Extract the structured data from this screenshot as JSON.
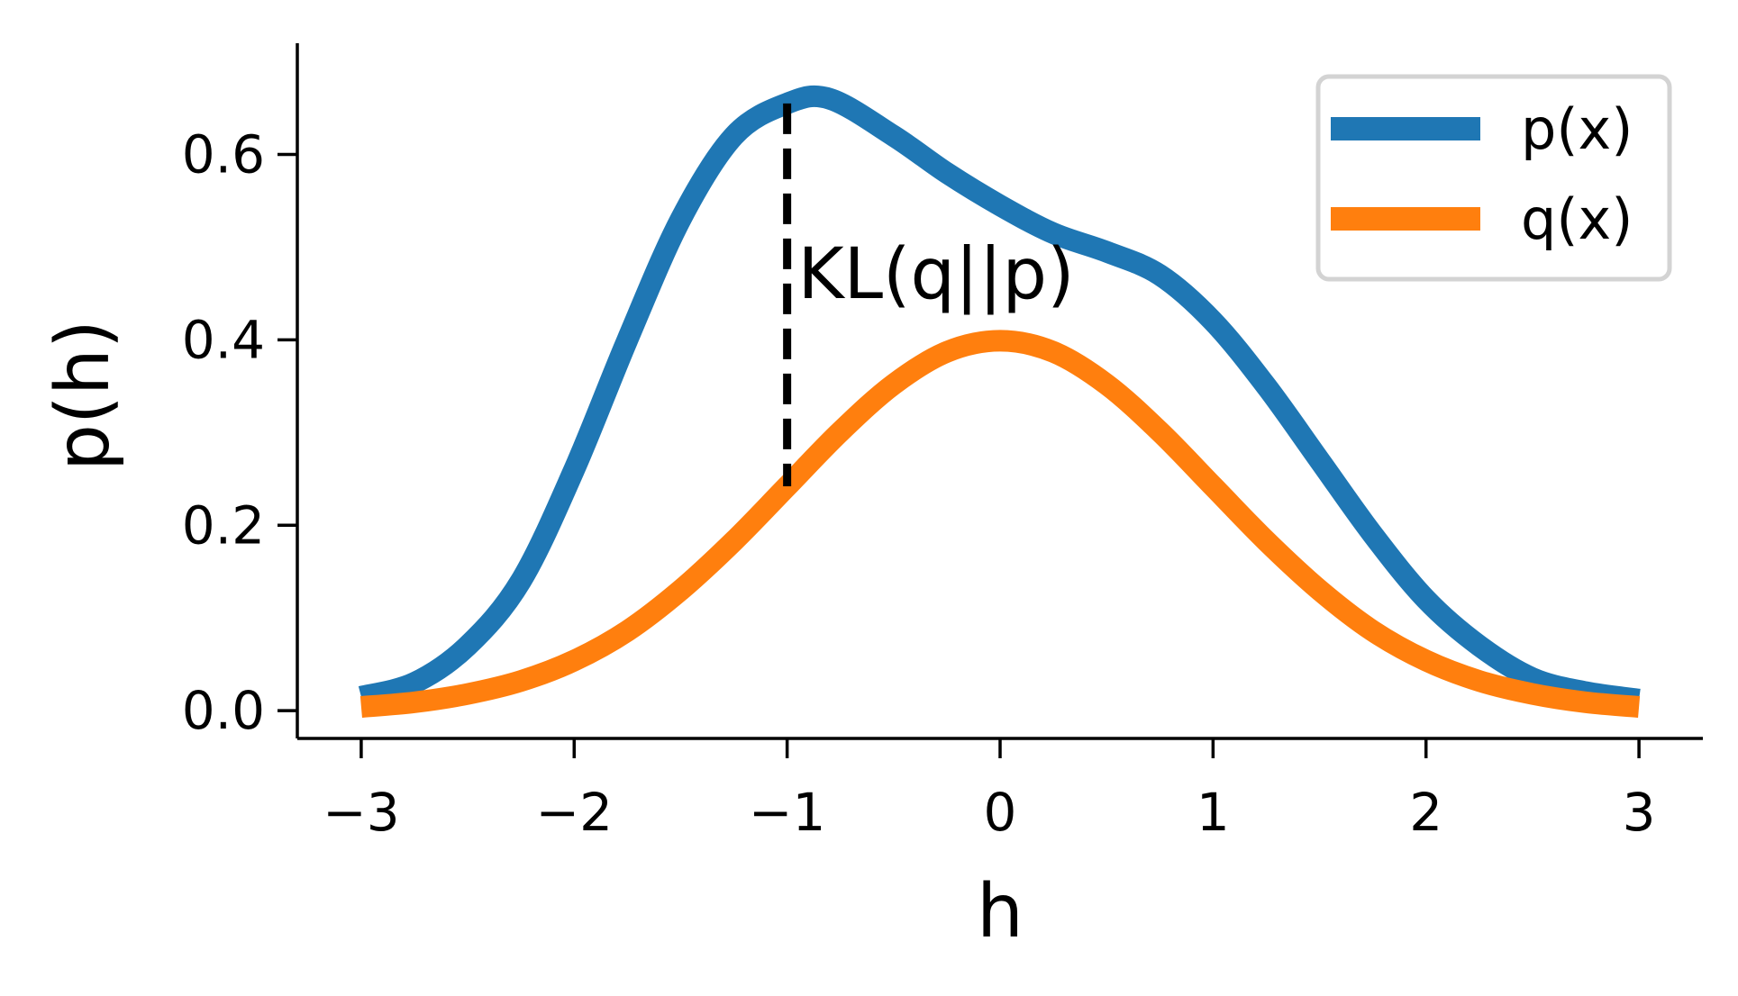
{
  "chart_data": {
    "type": "line",
    "title": "",
    "xlabel": "h",
    "ylabel": "p(h)",
    "xlim": [
      -3.3,
      3.3
    ],
    "ylim": [
      -0.03,
      0.72
    ],
    "xticks": [
      -3,
      -2,
      -1,
      0,
      1,
      2,
      3
    ],
    "xtick_labels": [
      "−3",
      "−2",
      "−1",
      "0",
      "1",
      "2",
      "3"
    ],
    "yticks": [
      0.0,
      0.2,
      0.4,
      0.6
    ],
    "ytick_labels": [
      "0.0",
      "0.2",
      "0.4",
      "0.6"
    ],
    "grid": false,
    "legend": "top-right",
    "series": [
      {
        "name": "p(x)",
        "color": "#1f77b4",
        "x": [
          -3.0,
          -2.75,
          -2.5,
          -2.25,
          -2.0,
          -1.75,
          -1.5,
          -1.25,
          -1.0,
          -0.8,
          -0.5,
          -0.25,
          0.0,
          0.25,
          0.5,
          0.75,
          1.0,
          1.25,
          1.5,
          1.75,
          2.0,
          2.25,
          2.5,
          2.75,
          3.0
        ],
        "y": [
          0.015,
          0.03,
          0.07,
          0.14,
          0.26,
          0.4,
          0.53,
          0.62,
          0.655,
          0.66,
          0.62,
          0.58,
          0.545,
          0.515,
          0.495,
          0.47,
          0.42,
          0.35,
          0.27,
          0.19,
          0.12,
          0.07,
          0.035,
          0.02,
          0.012
        ]
      },
      {
        "name": "q(x)",
        "color": "#ff7f0e",
        "x": [
          -3.0,
          -2.75,
          -2.5,
          -2.25,
          -2.0,
          -1.75,
          -1.5,
          -1.25,
          -1.0,
          -0.75,
          -0.5,
          -0.25,
          0.0,
          0.25,
          0.5,
          0.75,
          1.0,
          1.25,
          1.5,
          1.75,
          2.0,
          2.25,
          2.5,
          2.75,
          3.0
        ],
        "y": [
          0.004,
          0.009,
          0.018,
          0.032,
          0.054,
          0.086,
          0.13,
          0.183,
          0.242,
          0.301,
          0.352,
          0.387,
          0.399,
          0.387,
          0.352,
          0.301,
          0.242,
          0.183,
          0.13,
          0.086,
          0.054,
          0.032,
          0.018,
          0.009,
          0.004
        ]
      }
    ],
    "annotations": [
      {
        "text": "KL(q||p)",
        "x": -0.95,
        "y": 0.445
      }
    ],
    "vline": {
      "x": -1.0,
      "y0": 0.242,
      "y1": 0.655,
      "style": "dashed",
      "color": "#000000"
    }
  }
}
